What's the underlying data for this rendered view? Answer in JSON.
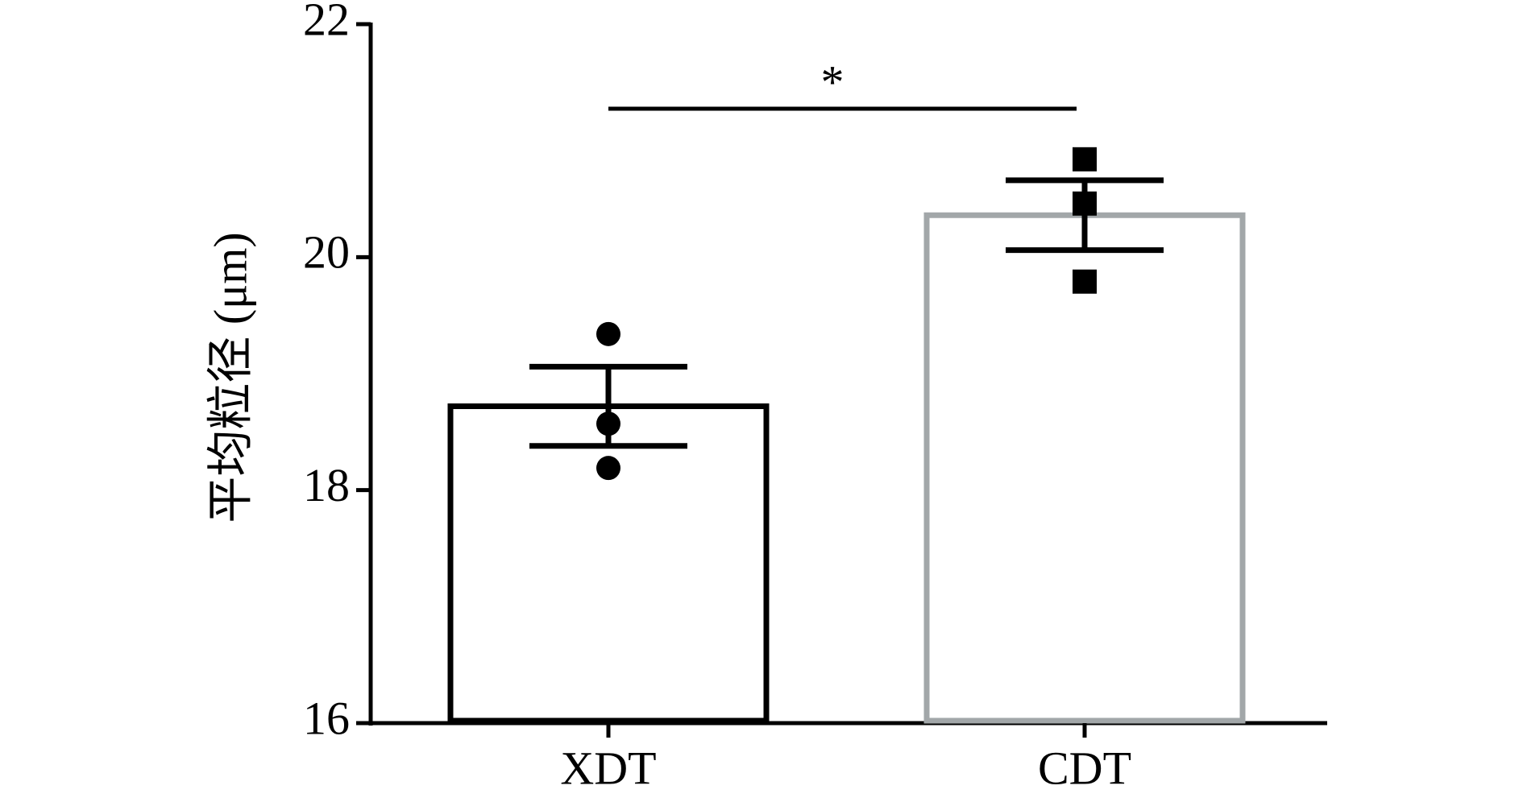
{
  "chart_data": {
    "type": "bar",
    "y_label": "平均粒径 (μm)",
    "categories": [
      "XDT",
      "CDT"
    ],
    "values": [
      18.72,
      20.36
    ],
    "errors": [
      0.34,
      0.3
    ],
    "points": [
      [
        19.34,
        18.57,
        18.19
      ],
      [
        20.84,
        20.46,
        19.79
      ]
    ],
    "colors": [
      "#000000",
      "#a2a7a9"
    ],
    "markers": [
      "circle",
      "square"
    ],
    "significance": "*",
    "ylim": [
      16,
      22
    ],
    "yticks": [
      16,
      18,
      20,
      22
    ]
  }
}
